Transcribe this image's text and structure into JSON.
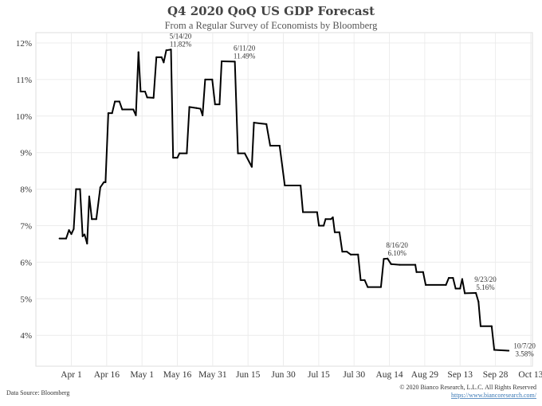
{
  "chart_data": {
    "type": "line",
    "title": "Q4 2020 QoQ US GDP Forecast",
    "subtitle": "From a Regular Survey of Economists by Bloomberg",
    "xlabel": "",
    "ylabel": "",
    "x_unit": "days since Apr 1, 2020",
    "xlim": [
      -14,
      196
    ],
    "ylim": [
      3.3,
      12.3
    ],
    "grid": true,
    "x_ticks": [
      {
        "label": "Apr 1",
        "day": 0
      },
      {
        "label": "Apr 16",
        "day": 15
      },
      {
        "label": "May 1",
        "day": 30
      },
      {
        "label": "May 16",
        "day": 45
      },
      {
        "label": "May 31",
        "day": 60
      },
      {
        "label": "Jun 15",
        "day": 75
      },
      {
        "label": "Jun 30",
        "day": 90
      },
      {
        "label": "Jul 15",
        "day": 105
      },
      {
        "label": "Jul 30",
        "day": 120
      },
      {
        "label": "Aug 14",
        "day": 135
      },
      {
        "label": "Aug 29",
        "day": 150
      },
      {
        "label": "Sep 13",
        "day": 165
      },
      {
        "label": "Sep 28",
        "day": 180
      },
      {
        "label": "Oct 13",
        "day": 195
      }
    ],
    "y_ticks": [
      {
        "label": "4%",
        "value": 4
      },
      {
        "label": "5%",
        "value": 5
      },
      {
        "label": "6%",
        "value": 6
      },
      {
        "label": "7%",
        "value": 7
      },
      {
        "label": "8%",
        "value": 8
      },
      {
        "label": "9%",
        "value": 9
      },
      {
        "label": "10%",
        "value": 10
      },
      {
        "label": "11%",
        "value": 11
      },
      {
        "label": "12%",
        "value": 12
      }
    ],
    "series": [
      {
        "name": "Q4 2020 QoQ US GDP Forecast",
        "color": "#000000",
        "points": [
          [
            -5,
            6.65
          ],
          [
            -2.2,
            6.65
          ],
          [
            -1,
            6.88
          ],
          [
            0,
            6.77
          ],
          [
            1,
            6.91
          ],
          [
            2,
            8.0
          ],
          [
            3.7,
            8.0
          ],
          [
            4.8,
            6.71
          ],
          [
            5.6,
            6.76
          ],
          [
            6.7,
            6.51
          ],
          [
            7.6,
            7.8
          ],
          [
            8.7,
            7.18
          ],
          [
            10.6,
            7.18
          ],
          [
            12.3,
            8.05
          ],
          [
            13.8,
            8.19
          ],
          [
            14.5,
            8.19
          ],
          [
            15.7,
            10.08
          ],
          [
            17.3,
            10.08
          ],
          [
            18.5,
            10.4
          ],
          [
            20.4,
            10.4
          ],
          [
            21.6,
            10.18
          ],
          [
            26.3,
            10.18
          ],
          [
            27.4,
            10.02
          ],
          [
            28.5,
            11.75
          ],
          [
            29.4,
            10.67
          ],
          [
            31.3,
            10.67
          ],
          [
            32.2,
            10.51
          ],
          [
            34.9,
            10.5
          ],
          [
            36.1,
            11.61
          ],
          [
            38.3,
            11.61
          ],
          [
            39.2,
            11.47
          ],
          [
            40.3,
            11.8
          ],
          [
            42.3,
            11.82
          ],
          [
            43.2,
            8.86
          ],
          [
            45,
            8.86
          ],
          [
            45.9,
            8.98
          ],
          [
            49,
            8.98
          ],
          [
            50.1,
            10.25
          ],
          [
            53.1,
            10.22
          ],
          [
            54.8,
            10.2
          ],
          [
            55.7,
            10.02
          ],
          [
            56.8,
            11.0
          ],
          [
            59.8,
            11.0
          ],
          [
            61,
            10.32
          ],
          [
            62.9,
            10.32
          ],
          [
            63.8,
            11.5
          ],
          [
            69.4,
            11.49
          ],
          [
            70.7,
            8.98
          ],
          [
            73.6,
            8.98
          ],
          [
            76.6,
            8.61
          ],
          [
            77.5,
            9.82
          ],
          [
            80,
            9.8
          ],
          [
            82.8,
            9.78
          ],
          [
            84.4,
            9.19
          ],
          [
            88.4,
            9.19
          ],
          [
            90.6,
            8.1
          ],
          [
            97.3,
            8.1
          ],
          [
            98.3,
            7.37
          ],
          [
            104.3,
            7.37
          ],
          [
            105.1,
            7.0
          ],
          [
            107.1,
            7.0
          ],
          [
            107.9,
            7.18
          ],
          [
            110.2,
            7.18
          ],
          [
            111,
            7.23
          ],
          [
            111.8,
            6.82
          ],
          [
            113.8,
            6.82
          ],
          [
            115,
            6.29
          ],
          [
            116.9,
            6.29
          ],
          [
            118.6,
            6.21
          ],
          [
            121.7,
            6.21
          ],
          [
            122.8,
            5.51
          ],
          [
            124.5,
            5.51
          ],
          [
            125.8,
            5.32
          ],
          [
            131.4,
            5.32
          ],
          [
            132.6,
            6.09
          ],
          [
            134.2,
            6.1
          ],
          [
            135.7,
            5.95
          ],
          [
            139.3,
            5.93
          ],
          [
            146,
            5.93
          ],
          [
            146.5,
            5.73
          ],
          [
            149.3,
            5.73
          ],
          [
            150.4,
            5.38
          ],
          [
            159,
            5.38
          ],
          [
            160.2,
            5.57
          ],
          [
            162,
            5.57
          ],
          [
            163.1,
            5.28
          ],
          [
            165,
            5.28
          ],
          [
            165.9,
            5.54
          ],
          [
            167,
            5.15
          ],
          [
            171.7,
            5.16
          ],
          [
            172.8,
            4.92
          ],
          [
            173.7,
            4.25
          ],
          [
            178.4,
            4.25
          ],
          [
            179.5,
            3.6
          ],
          [
            185.6,
            3.58
          ]
        ]
      }
    ],
    "annotations": [
      {
        "date": "5/14/20",
        "value_label": "11.82%",
        "day": 42.3,
        "value": 11.82,
        "placement": "above"
      },
      {
        "date": "6/11/20",
        "value_label": "11.49%",
        "day": 69.4,
        "value": 11.49,
        "placement": "above"
      },
      {
        "date": "8/16/20",
        "value_label": "6.10%",
        "day": 134.2,
        "value": 6.1,
        "placement": "above"
      },
      {
        "date": "9/23/20",
        "value_label": "5.16%",
        "day": 171.7,
        "value": 5.16,
        "placement": "above"
      },
      {
        "date": "10/7/20",
        "value_label": "3.58%",
        "day": 185.6,
        "value": 3.58,
        "placement": "right"
      }
    ],
    "legend": "none"
  },
  "footer": {
    "source": "Data Source: Bloomberg",
    "copyright": "© 2020 Bianco Research, L.L.C. All Rights Reserved",
    "url": "https://www.biancoresearch.com/"
  },
  "colors": {
    "line": "#000000",
    "grid": "#ececec",
    "frame": "#dddddd",
    "link": "#3a78b5"
  }
}
